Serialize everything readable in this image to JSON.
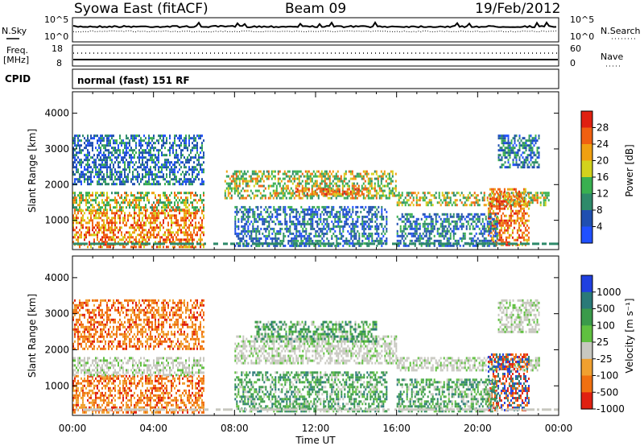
{
  "header": {
    "station": "Syowa East (fitACF)",
    "beam": "Beam 09",
    "date": "19/Feb/2012"
  },
  "top_panels": {
    "nsky_label": "N.Sky",
    "nsearch_label": "N.Search",
    "nsky_ticks": [
      "10^5",
      "10^0"
    ],
    "nsearch_ticks": [
      "10^5",
      "10^0"
    ],
    "freq_label": "Freq.",
    "freq_unit": "[MHz]",
    "freq_ticks": [
      "18",
      "8"
    ],
    "nave_label": "Nave",
    "nave_ticks": [
      "60",
      "0"
    ],
    "cpid_label": "CPID",
    "cpid_value": "normal (fast) 151 RF"
  },
  "chart_data": [
    {
      "type": "heatmap",
      "name": "power",
      "ylabel": "Slant Range [km]",
      "xlabel": "Time UT",
      "ylim": [
        180,
        4600
      ],
      "xlim": [
        0,
        24
      ],
      "yticks": [
        "1000",
        "2000",
        "3000",
        "4000"
      ],
      "xticks": [
        "00:00",
        "04:00",
        "08:00",
        "12:00",
        "16:00",
        "20:00",
        "00:00"
      ],
      "colorbar_label": "Power [dB]",
      "colorbar_ticks": [
        "4",
        "8",
        "12",
        "16",
        "20",
        "24",
        "28"
      ],
      "colorbar_colors": [
        "#2050ff",
        "#1f4fb0",
        "#2e8a6a",
        "#39b050",
        "#d2d21c",
        "#f0a010",
        "#f06010",
        "#e02010"
      ],
      "echo_regions": [
        {
          "t": [
            0.0,
            6.5
          ],
          "r": [
            250,
            1300
          ],
          "level": "high"
        },
        {
          "t": [
            0.0,
            6.5
          ],
          "r": [
            1300,
            1800
          ],
          "level": "mid"
        },
        {
          "t": [
            0.0,
            6.5
          ],
          "r": [
            2000,
            3400
          ],
          "level": "low"
        },
        {
          "t": [
            7.5,
            16.0
          ],
          "r": [
            1600,
            2400
          ],
          "level": "mid"
        },
        {
          "t": [
            11.0,
            14.5
          ],
          "r": [
            1700,
            1900
          ],
          "level": "high"
        },
        {
          "t": [
            8.0,
            15.5
          ],
          "r": [
            300,
            1400
          ],
          "level": "low"
        },
        {
          "t": [
            16.0,
            23.5
          ],
          "r": [
            1400,
            1800
          ],
          "level": "mid"
        },
        {
          "t": [
            20.5,
            22.5
          ],
          "r": [
            300,
            1900
          ],
          "level": "high"
        },
        {
          "t": [
            16.0,
            21.0
          ],
          "r": [
            300,
            1200
          ],
          "level": "low"
        },
        {
          "t": [
            21.0,
            23.0
          ],
          "r": [
            2500,
            3400
          ],
          "level": "low"
        }
      ]
    },
    {
      "type": "heatmap",
      "name": "velocity",
      "ylabel": "Slant Range [km]",
      "xlabel": "Time UT",
      "ylim": [
        180,
        4600
      ],
      "xlim": [
        0,
        24
      ],
      "yticks": [
        "1000",
        "2000",
        "3000",
        "4000"
      ],
      "xticks": [
        "00:00",
        "04:00",
        "08:00",
        "12:00",
        "16:00",
        "20:00",
        "00:00"
      ],
      "colorbar_label": "Velocity [m s⁻¹]",
      "colorbar_ticks": [
        "1000",
        "500",
        "100",
        "25",
        "-25",
        "-100",
        "-500",
        "-1000"
      ],
      "colorbar_colors": [
        "#2040e0",
        "#2a7a78",
        "#3a9a4a",
        "#60c040",
        "#c8c8c0",
        "#f0a030",
        "#f07010",
        "#e02010"
      ],
      "echo_regions": [
        {
          "t": [
            0.0,
            6.5
          ],
          "r": [
            250,
            1300
          ],
          "level": "neg"
        },
        {
          "t": [
            0.0,
            6.5
          ],
          "r": [
            1300,
            1800
          ],
          "level": "zero"
        },
        {
          "t": [
            0.0,
            6.5
          ],
          "r": [
            2000,
            3400
          ],
          "level": "neg"
        },
        {
          "t": [
            8.0,
            16.0
          ],
          "r": [
            1600,
            2400
          ],
          "level": "zero"
        },
        {
          "t": [
            9.0,
            15.0
          ],
          "r": [
            2200,
            2800
          ],
          "level": "pos"
        },
        {
          "t": [
            8.0,
            15.5
          ],
          "r": [
            300,
            1400
          ],
          "level": "pos"
        },
        {
          "t": [
            16.0,
            23.0
          ],
          "r": [
            1400,
            1800
          ],
          "level": "zero"
        },
        {
          "t": [
            20.5,
            22.5
          ],
          "r": [
            300,
            1900
          ],
          "level": "fast"
        },
        {
          "t": [
            16.0,
            21.0
          ],
          "r": [
            300,
            1200
          ],
          "level": "pos"
        },
        {
          "t": [
            21.0,
            23.0
          ],
          "r": [
            2500,
            3400
          ],
          "level": "zero"
        }
      ]
    }
  ]
}
